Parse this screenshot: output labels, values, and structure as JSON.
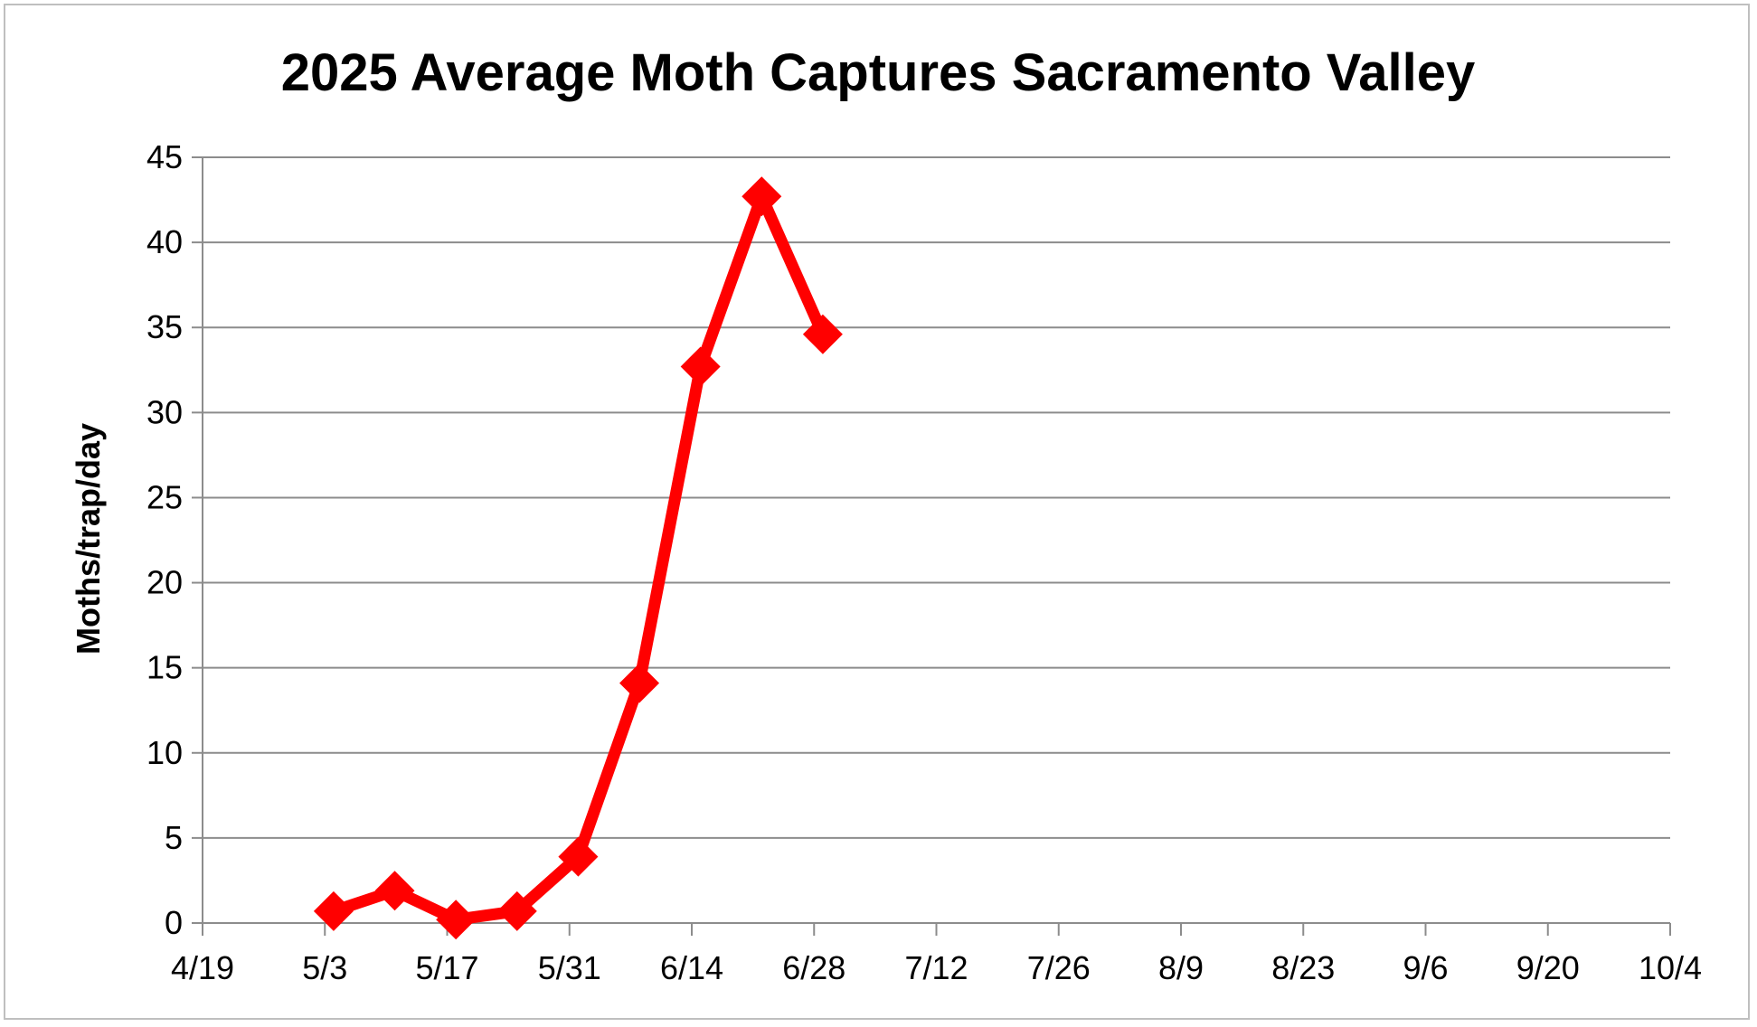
{
  "chart_data": {
    "type": "line",
    "title": "2025 Average Moth Captures Sacramento Valley",
    "xlabel": "",
    "ylabel": "Moths/trap/day",
    "x_tick_labels": [
      "4/19",
      "5/3",
      "5/17",
      "5/31",
      "6/14",
      "6/28",
      "7/12",
      "7/26",
      "8/9",
      "8/23",
      "9/6",
      "9/20",
      "10/4"
    ],
    "y_tick_labels": [
      "0",
      "5",
      "10",
      "15",
      "20",
      "25",
      "30",
      "35",
      "40",
      "45"
    ],
    "xlim": [
      "2025-04-19",
      "2025-10-04"
    ],
    "ylim": [
      0,
      45
    ],
    "y_tick_step": 5,
    "grid": "horizontal",
    "legend": "none",
    "series": [
      {
        "color": "#ff0000",
        "marker": "diamond",
        "x": [
          "2025-05-04",
          "2025-05-11",
          "2025-05-18",
          "2025-05-25",
          "2025-06-01",
          "2025-06-08",
          "2025-06-15",
          "2025-06-22",
          "2025-06-29"
        ],
        "y": [
          0.7,
          1.9,
          0.2,
          0.7,
          3.9,
          14.1,
          32.7,
          42.7,
          34.6
        ]
      }
    ]
  }
}
